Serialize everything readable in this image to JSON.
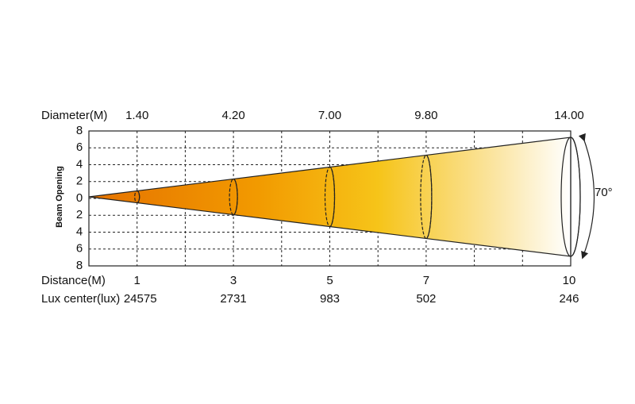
{
  "header": {
    "diameter_label": "Diameter(M)",
    "distance_label": "Distance(M)",
    "lux_label": "Lux center(lux)",
    "axis_label": "Beam Opening",
    "angle": "70°"
  },
  "y_ticks": [
    "8",
    "6",
    "4",
    "2",
    "0",
    "2",
    "4",
    "6",
    "8"
  ],
  "columns": [
    {
      "diameter": "1.40",
      "distance": "1",
      "lux": "24575"
    },
    {
      "diameter": "4.20",
      "distance": "3",
      "lux": "2731"
    },
    {
      "diameter": "7.00",
      "distance": "5",
      "lux": "983"
    },
    {
      "diameter": "9.80",
      "distance": "7",
      "lux": "502"
    },
    {
      "diameter": "14.00",
      "distance": "10",
      "lux": "246"
    }
  ]
}
